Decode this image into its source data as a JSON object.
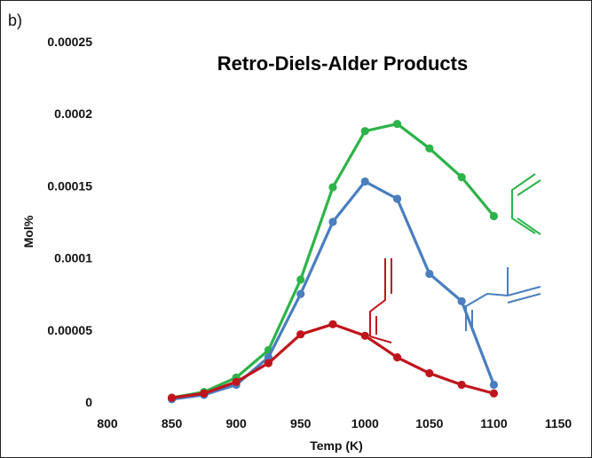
{
  "panel_label": "b)",
  "chart_data": {
    "type": "line",
    "title": "Retro-Diels-Alder Products",
    "xlabel": "Temp (K)",
    "ylabel": "Mol%",
    "xlim": [
      800,
      1150
    ],
    "ylim": [
      0,
      0.00025
    ],
    "x_ticks": [
      800,
      850,
      900,
      950,
      1000,
      1050,
      1100,
      1150
    ],
    "x_tick_labels": [
      "800",
      "850",
      "900",
      "950",
      "1000",
      "1050",
      "1100",
      "1150"
    ],
    "y_ticks": [
      0,
      5e-05,
      0.0001,
      0.00015,
      0.0002,
      0.00025
    ],
    "y_tick_labels": [
      "0",
      "0.00005",
      "0.0001",
      "0.00015",
      "0.0002",
      "0.00025"
    ],
    "grid": false,
    "series": [
      {
        "color": "#2db34a",
        "structure_icon": "butadiene-structure-icon",
        "x": [
          850,
          875,
          900,
          925,
          950,
          975,
          1000,
          1025,
          1050,
          1075,
          1100
        ],
        "y": [
          3e-06,
          7e-06,
          1.7e-05,
          3.6e-05,
          8.5e-05,
          0.000149,
          0.000188,
          0.000193,
          0.000176,
          0.000156,
          0.000129
        ]
      },
      {
        "color": "#4a7ebf",
        "structure_icon": "isoprene-structure-icon",
        "x": [
          850,
          875,
          900,
          925,
          950,
          975,
          1000,
          1025,
          1050,
          1075,
          1100
        ],
        "y": [
          2e-06,
          5e-06,
          1.2e-05,
          3.1e-05,
          7.5e-05,
          0.000125,
          0.000153,
          0.000141,
          8.9e-05,
          7e-05,
          1.2e-05
        ]
      },
      {
        "color": "#c0141c",
        "structure_icon": "hexatriene-structure-icon",
        "x": [
          850,
          875,
          900,
          925,
          950,
          975,
          1000,
          1025,
          1050,
          1075,
          1100
        ],
        "y": [
          3e-06,
          6e-06,
          1.4e-05,
          2.7e-05,
          4.7e-05,
          5.4e-05,
          4.6e-05,
          3.1e-05,
          2e-05,
          1.2e-05,
          6e-06
        ]
      }
    ]
  }
}
